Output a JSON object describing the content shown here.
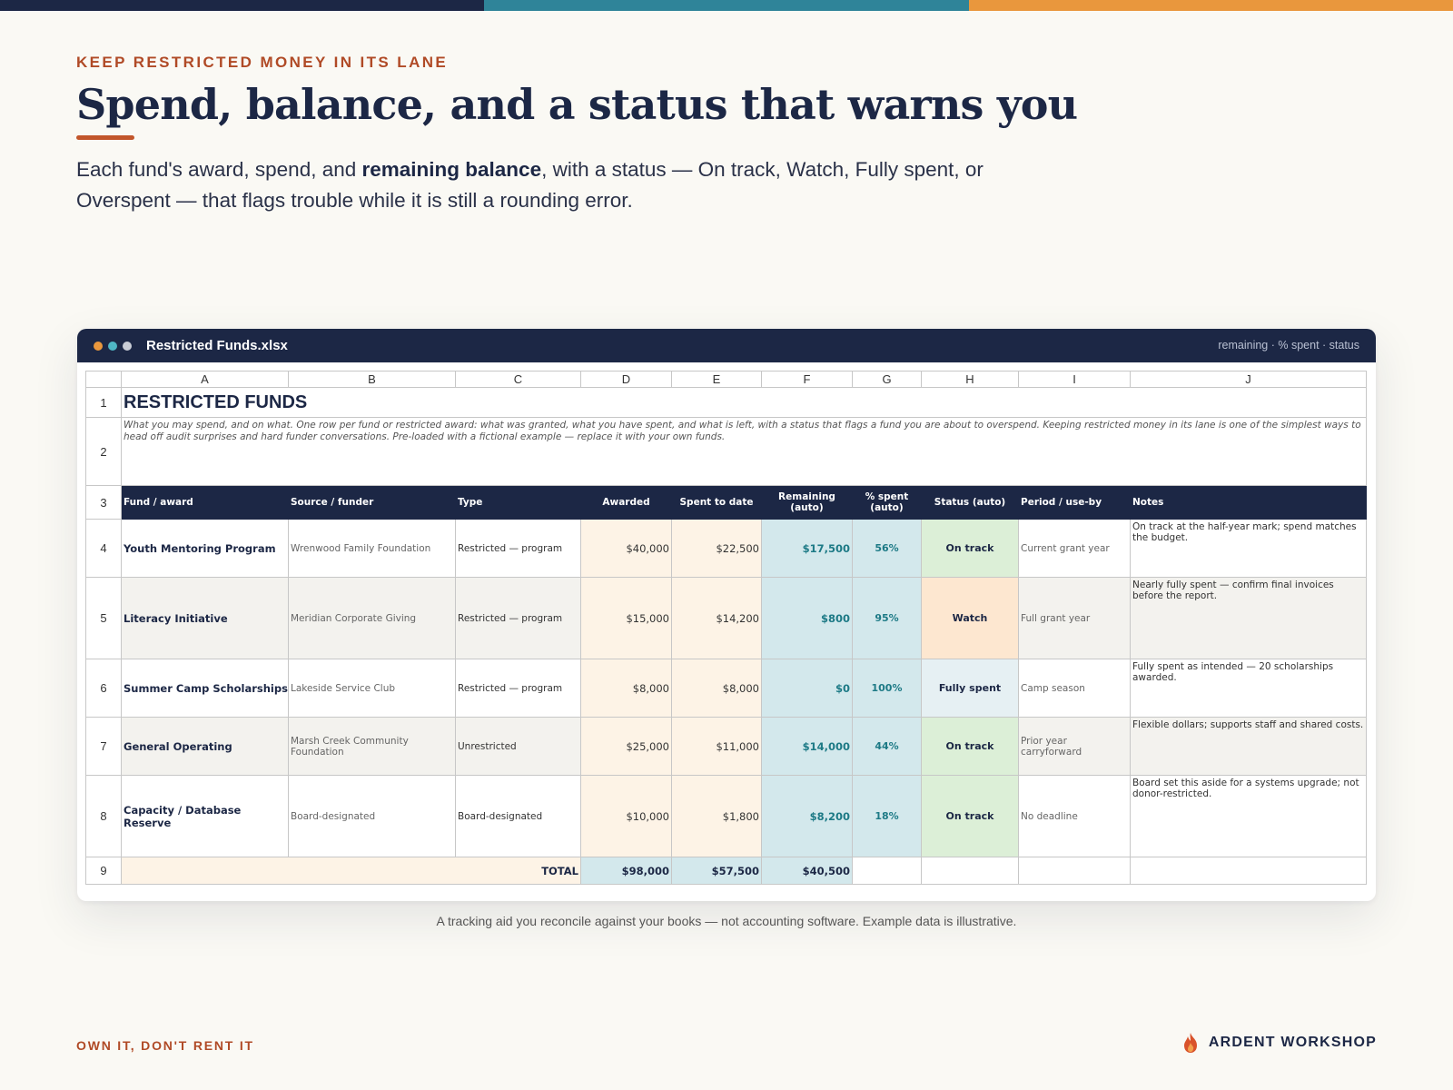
{
  "colors": {
    "navy": "#1c2745",
    "teal": "#2f8499",
    "orange": "#e9973d",
    "rust": "#b04a26"
  },
  "page": {
    "eyebrow": "KEEP RESTRICTED MONEY IN ITS LANE",
    "headline": "Spend, balance, and a status that warns you",
    "lede_pre": "Each fund's award, spend, and ",
    "lede_bold": "remaining balance",
    "lede_post": ", with a status — On track, Watch, Fully spent, or Overspent — that flags trouble while it is still a rounding error.",
    "caption": "A tracking aid you reconcile against your books — not accounting software. Example data is illustrative.",
    "footer_left": "OWN IT, DON'T RENT IT",
    "brand": "ARDENT WORKSHOP",
    "brand_icon": "flame-icon"
  },
  "window": {
    "file_name": "Restricted Funds.xlsx",
    "hint": "remaining · % spent · status"
  },
  "sheet": {
    "columns": [
      "A",
      "B",
      "C",
      "D",
      "E",
      "F",
      "G",
      "H",
      "I",
      "J"
    ],
    "title": "RESTRICTED FUNDS",
    "description": "What you may spend, and on what. One row per fund or restricted award: what was granted, what you have spent, and what is left, with a status that flags a fund you are about to overspend. Keeping restricted money in its lane is one of the simplest ways to head off audit surprises and hard funder conversations. Pre-loaded with a fictional example — replace it with your own funds.",
    "headers": {
      "fund": "Fund / award",
      "source": "Source / funder",
      "type": "Type",
      "awarded": "Awarded",
      "spent": "Spent to date",
      "remaining": "Remaining (auto)",
      "pct_line1": "% spent",
      "pct_line2": "(auto)",
      "status": "Status (auto)",
      "period": "Period / use-by",
      "notes": "Notes"
    },
    "rows": [
      {
        "num": "4",
        "fund": "Youth Mentoring Program",
        "source": "Wrenwood Family Foundation",
        "type": "Restricted — program",
        "awarded": "$40,000",
        "spent": "$22,500",
        "remaining": "$17,500",
        "pct": "56%",
        "status": "On track",
        "period": "Current grant year",
        "notes": "On track at the half-year mark; spend matches the budget."
      },
      {
        "num": "5",
        "fund": "Literacy Initiative",
        "source": "Meridian Corporate Giving",
        "type": "Restricted — program",
        "awarded": "$15,000",
        "spent": "$14,200",
        "remaining": "$800",
        "pct": "95%",
        "status": "Watch",
        "period": "Full grant year",
        "notes": "Nearly fully spent — confirm final invoices before the report."
      },
      {
        "num": "6",
        "fund": "Summer Camp Scholarships",
        "source": "Lakeside Service Club",
        "type": "Restricted — program",
        "awarded": "$8,000",
        "spent": "$8,000",
        "remaining": "$0",
        "pct": "100%",
        "status": "Fully spent",
        "period": "Camp season",
        "notes": "Fully spent as intended — 20 scholarships awarded."
      },
      {
        "num": "7",
        "fund": "General Operating",
        "source": "Marsh Creek Community Foundation",
        "type": "Unrestricted",
        "awarded": "$25,000",
        "spent": "$11,000",
        "remaining": "$14,000",
        "pct": "44%",
        "status": "On track",
        "period": "Prior year carryforward",
        "notes": "Flexible dollars; supports staff and shared costs."
      },
      {
        "num": "8",
        "fund": "Capacity / Database Reserve",
        "source": "Board-designated",
        "type": "Board-designated",
        "awarded": "$10,000",
        "spent": "$1,800",
        "remaining": "$8,200",
        "pct": "18%",
        "status": "On track",
        "period": "No deadline",
        "notes": "Board set this aside for a systems upgrade; not donor-restricted."
      }
    ],
    "total": {
      "label": "TOTAL",
      "awarded": "$98,000",
      "spent": "$57,500",
      "remaining": "$40,500"
    }
  }
}
